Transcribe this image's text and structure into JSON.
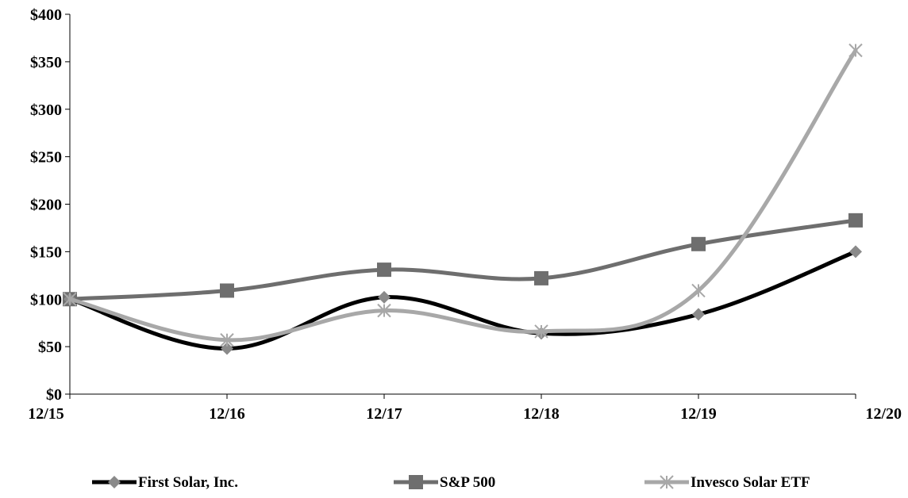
{
  "chart_data": {
    "type": "line",
    "title": "",
    "xlabel": "",
    "ylabel": "",
    "categories": [
      "12/15",
      "12/16",
      "12/17",
      "12/18",
      "12/19",
      "12/20"
    ],
    "y_ticks": [
      "$0",
      "$50",
      "$100",
      "$150",
      "$200",
      "$250",
      "$300",
      "$350",
      "$400"
    ],
    "ylim": [
      0,
      400
    ],
    "grid": false,
    "legend_position": "bottom",
    "series": [
      {
        "name": "First Solar, Inc.",
        "values": [
          100,
          48,
          102,
          64,
          84,
          150
        ],
        "color": "#000000",
        "marker": "diamond",
        "marker_color": "#8a8a8a"
      },
      {
        "name": "S&P 500",
        "values": [
          100,
          109,
          131,
          122,
          158,
          183
        ],
        "color": "#6e6e6e",
        "marker": "square",
        "marker_color": "#6e6e6e"
      },
      {
        "name": "Invesco Solar ETF",
        "values": [
          100,
          57,
          88,
          66,
          109,
          362
        ],
        "color": "#a8a8a8",
        "marker": "asterisk",
        "marker_color": "#a8a8a8"
      }
    ]
  }
}
